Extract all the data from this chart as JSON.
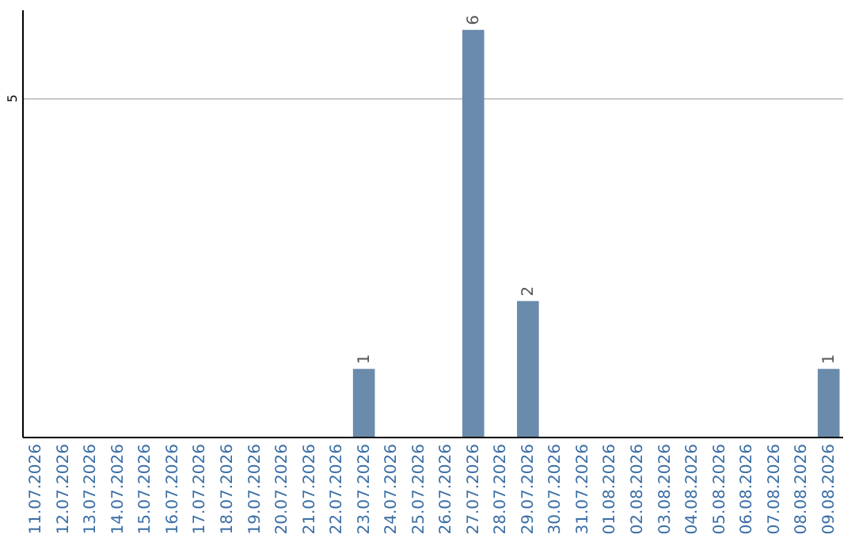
{
  "chart_data": {
    "type": "bar",
    "categories": [
      "11.07.2026",
      "12.07.2026",
      "13.07.2026",
      "14.07.2026",
      "15.07.2026",
      "16.07.2026",
      "17.07.2026",
      "18.07.2026",
      "19.07.2026",
      "20.07.2026",
      "21.07.2026",
      "22.07.2026",
      "23.07.2026",
      "24.07.2026",
      "25.07.2026",
      "26.07.2026",
      "27.07.2026",
      "28.07.2026",
      "29.07.2026",
      "30.07.2026",
      "31.07.2026",
      "01.08.2026",
      "02.08.2026",
      "03.08.2026",
      "04.08.2026",
      "05.08.2026",
      "06.08.2026",
      "07.08.2026",
      "08.08.2026",
      "09.08.2026"
    ],
    "values": [
      null,
      null,
      null,
      null,
      null,
      null,
      null,
      null,
      null,
      null,
      null,
      null,
      1,
      null,
      null,
      null,
      6,
      null,
      2,
      null,
      null,
      null,
      null,
      null,
      null,
      null,
      null,
      null,
      null,
      1
    ],
    "value_labels": [
      null,
      null,
      null,
      null,
      null,
      null,
      null,
      null,
      null,
      null,
      null,
      null,
      "1",
      null,
      null,
      null,
      "6",
      null,
      "2",
      null,
      null,
      null,
      null,
      null,
      null,
      null,
      null,
      null,
      null,
      "1"
    ],
    "color": "#6a8bab",
    "ylim": [
      0,
      6.3
    ],
    "yticks": [
      5
    ],
    "grid": "y"
  }
}
